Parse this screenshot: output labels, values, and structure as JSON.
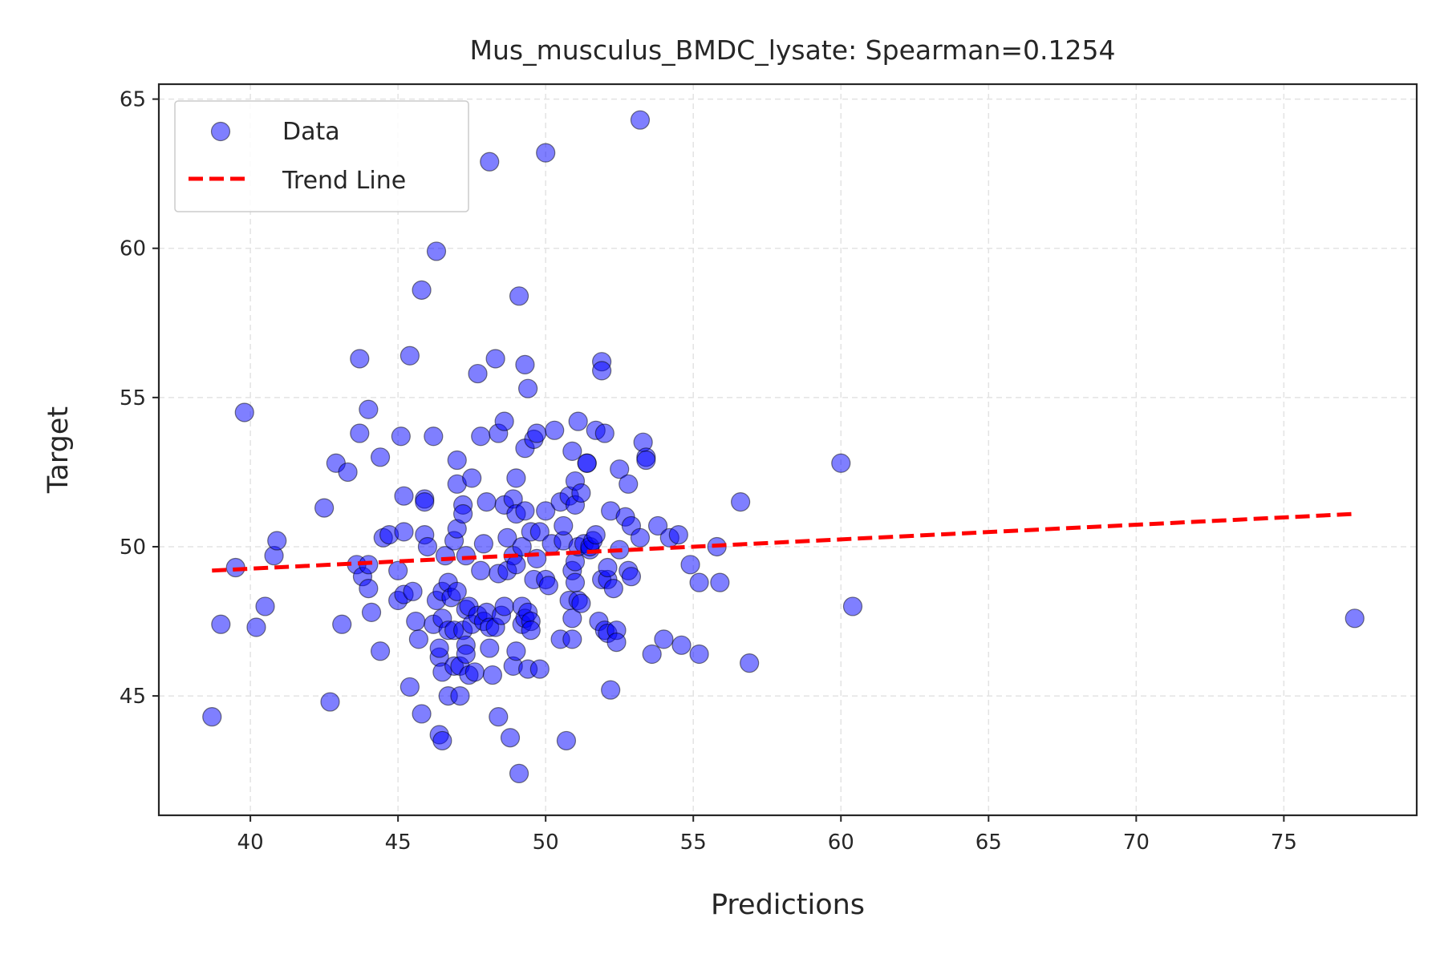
{
  "colors": {
    "points": "#0000ff",
    "trend": "#ff0000",
    "grid": "#e3e3e3",
    "frame": "#262626"
  },
  "legend": {
    "data_label": "Data",
    "trend_label": "Trend Line",
    "placement": "top-left"
  },
  "chart_data": {
    "type": "scatter",
    "title": "Mus_musculus_BMDC_lysate: Spearman=0.1254",
    "xlabel": "Predictions",
    "ylabel": "Target",
    "xlim": [
      36.9,
      79.5
    ],
    "ylim": [
      41.0,
      65.5
    ],
    "xticks": [
      40,
      45,
      50,
      55,
      60,
      65,
      70,
      75
    ],
    "yticks": [
      45,
      50,
      55,
      60,
      65
    ],
    "grid": true,
    "series": [
      {
        "name": "Data",
        "points": [
          [
            38.7,
            44.3
          ],
          [
            39.0,
            47.4
          ],
          [
            39.5,
            49.3
          ],
          [
            39.8,
            54.5
          ],
          [
            40.2,
            47.3
          ],
          [
            40.5,
            48.0
          ],
          [
            40.8,
            49.7
          ],
          [
            40.9,
            50.2
          ],
          [
            42.5,
            51.3
          ],
          [
            42.7,
            44.8
          ],
          [
            42.9,
            52.8
          ],
          [
            43.1,
            47.4
          ],
          [
            43.3,
            52.5
          ],
          [
            43.6,
            49.4
          ],
          [
            43.7,
            53.8
          ],
          [
            43.7,
            56.3
          ],
          [
            43.8,
            49.0
          ],
          [
            44.0,
            48.6
          ],
          [
            44.0,
            49.4
          ],
          [
            44.0,
            54.6
          ],
          [
            44.1,
            47.8
          ],
          [
            44.4,
            53.0
          ],
          [
            44.4,
            46.5
          ],
          [
            44.5,
            50.3
          ],
          [
            44.7,
            50.4
          ],
          [
            45.0,
            48.2
          ],
          [
            45.0,
            49.2
          ],
          [
            45.1,
            53.7
          ],
          [
            45.2,
            48.4
          ],
          [
            45.2,
            51.7
          ],
          [
            45.2,
            50.5
          ],
          [
            45.4,
            56.4
          ],
          [
            45.4,
            45.3
          ],
          [
            45.5,
            48.5
          ],
          [
            45.6,
            47.5
          ],
          [
            45.8,
            58.6
          ],
          [
            45.7,
            46.9
          ],
          [
            45.8,
            44.4
          ],
          [
            45.9,
            50.4
          ],
          [
            45.9,
            51.6
          ],
          [
            45.9,
            51.5
          ],
          [
            46.0,
            50.0
          ],
          [
            46.2,
            53.7
          ],
          [
            46.2,
            47.4
          ],
          [
            46.3,
            59.9
          ],
          [
            46.3,
            48.2
          ],
          [
            46.4,
            46.3
          ],
          [
            46.4,
            46.6
          ],
          [
            46.4,
            43.7
          ],
          [
            46.5,
            47.6
          ],
          [
            46.5,
            48.5
          ],
          [
            46.5,
            45.8
          ],
          [
            46.5,
            43.5
          ],
          [
            46.6,
            49.7
          ],
          [
            46.7,
            48.8
          ],
          [
            46.7,
            47.2
          ],
          [
            46.7,
            45.0
          ],
          [
            46.8,
            48.3
          ],
          [
            46.9,
            46.0
          ],
          [
            46.9,
            50.2
          ],
          [
            46.9,
            47.2
          ],
          [
            47.0,
            52.1
          ],
          [
            47.0,
            52.9
          ],
          [
            47.0,
            50.6
          ],
          [
            47.0,
            48.5
          ],
          [
            47.1,
            45.0
          ],
          [
            47.1,
            46.0
          ],
          [
            47.2,
            51.4
          ],
          [
            47.2,
            51.1
          ],
          [
            47.2,
            47.2
          ],
          [
            47.3,
            49.7
          ],
          [
            47.3,
            47.9
          ],
          [
            47.3,
            46.7
          ],
          [
            47.3,
            46.4
          ],
          [
            47.4,
            45.7
          ],
          [
            47.4,
            48.0
          ],
          [
            47.5,
            52.3
          ],
          [
            47.5,
            47.4
          ],
          [
            47.6,
            45.8
          ],
          [
            47.7,
            55.8
          ],
          [
            47.7,
            47.7
          ],
          [
            47.8,
            53.7
          ],
          [
            47.8,
            49.2
          ],
          [
            47.9,
            50.1
          ],
          [
            47.9,
            47.5
          ],
          [
            48.0,
            47.8
          ],
          [
            48.0,
            51.5
          ],
          [
            48.1,
            62.9
          ],
          [
            48.1,
            46.6
          ],
          [
            48.1,
            47.3
          ],
          [
            48.2,
            45.7
          ],
          [
            48.3,
            56.3
          ],
          [
            48.3,
            47.3
          ],
          [
            48.4,
            53.8
          ],
          [
            48.4,
            49.1
          ],
          [
            48.4,
            44.3
          ],
          [
            48.5,
            47.7
          ],
          [
            48.6,
            51.4
          ],
          [
            48.6,
            48.0
          ],
          [
            48.6,
            54.2
          ],
          [
            48.7,
            50.3
          ],
          [
            48.7,
            49.2
          ],
          [
            48.8,
            43.6
          ],
          [
            48.9,
            51.6
          ],
          [
            48.9,
            49.7
          ],
          [
            48.9,
            46.0
          ],
          [
            49.0,
            52.3
          ],
          [
            49.0,
            49.4
          ],
          [
            49.0,
            51.1
          ],
          [
            49.0,
            46.5
          ],
          [
            49.1,
            42.4
          ],
          [
            49.1,
            58.4
          ],
          [
            49.2,
            50.0
          ],
          [
            49.2,
            48.0
          ],
          [
            49.2,
            47.4
          ],
          [
            49.3,
            47.6
          ],
          [
            49.3,
            56.1
          ],
          [
            49.3,
            53.3
          ],
          [
            49.3,
            51.2
          ],
          [
            49.4,
            55.3
          ],
          [
            49.4,
            47.8
          ],
          [
            49.4,
            45.9
          ],
          [
            49.5,
            47.5
          ],
          [
            49.5,
            47.2
          ],
          [
            49.5,
            50.5
          ],
          [
            49.6,
            53.6
          ],
          [
            49.6,
            48.9
          ],
          [
            49.7,
            53.8
          ],
          [
            49.7,
            49.6
          ],
          [
            49.8,
            50.5
          ],
          [
            49.8,
            45.9
          ],
          [
            50.0,
            51.2
          ],
          [
            50.0,
            63.2
          ],
          [
            50.0,
            48.9
          ],
          [
            50.1,
            48.7
          ],
          [
            50.2,
            50.1
          ],
          [
            50.3,
            53.9
          ],
          [
            50.5,
            46.9
          ],
          [
            50.5,
            51.5
          ],
          [
            50.6,
            50.2
          ],
          [
            50.6,
            50.7
          ],
          [
            50.7,
            43.5
          ],
          [
            50.8,
            51.7
          ],
          [
            50.8,
            48.2
          ],
          [
            50.9,
            49.2
          ],
          [
            50.9,
            46.9
          ],
          [
            50.9,
            47.6
          ],
          [
            50.9,
            53.2
          ],
          [
            51.0,
            49.5
          ],
          [
            51.0,
            48.8
          ],
          [
            51.0,
            52.2
          ],
          [
            51.0,
            51.4
          ],
          [
            51.1,
            54.2
          ],
          [
            51.1,
            48.2
          ],
          [
            51.1,
            50.0
          ],
          [
            51.2,
            51.8
          ],
          [
            51.2,
            48.1
          ],
          [
            51.3,
            50.1
          ],
          [
            51.4,
            52.8
          ],
          [
            51.4,
            52.8
          ],
          [
            51.5,
            49.9
          ],
          [
            51.5,
            50.0
          ],
          [
            51.6,
            50.2
          ],
          [
            51.7,
            53.9
          ],
          [
            51.7,
            50.4
          ],
          [
            51.8,
            47.5
          ],
          [
            51.9,
            56.2
          ],
          [
            51.9,
            55.9
          ],
          [
            51.9,
            48.9
          ],
          [
            52.0,
            47.2
          ],
          [
            52.0,
            53.8
          ],
          [
            52.1,
            48.9
          ],
          [
            52.1,
            49.3
          ],
          [
            52.1,
            47.1
          ],
          [
            52.2,
            45.2
          ],
          [
            52.2,
            51.2
          ],
          [
            52.3,
            48.6
          ],
          [
            52.4,
            47.2
          ],
          [
            52.4,
            46.8
          ],
          [
            52.5,
            52.6
          ],
          [
            52.5,
            49.9
          ],
          [
            52.7,
            51.0
          ],
          [
            52.8,
            52.1
          ],
          [
            52.8,
            49.2
          ],
          [
            52.9,
            49.0
          ],
          [
            52.9,
            50.7
          ],
          [
            53.2,
            64.3
          ],
          [
            53.2,
            50.3
          ],
          [
            53.3,
            53.5
          ],
          [
            53.4,
            53.0
          ],
          [
            53.4,
            52.9
          ],
          [
            53.6,
            46.4
          ],
          [
            53.8,
            50.7
          ],
          [
            54.0,
            46.9
          ],
          [
            54.2,
            50.3
          ],
          [
            54.5,
            50.4
          ],
          [
            54.6,
            46.7
          ],
          [
            54.9,
            49.4
          ],
          [
            55.2,
            48.8
          ],
          [
            55.2,
            46.4
          ],
          [
            55.8,
            50.0
          ],
          [
            55.9,
            48.8
          ],
          [
            56.6,
            51.5
          ],
          [
            56.9,
            46.1
          ],
          [
            60.0,
            52.8
          ],
          [
            60.4,
            48.0
          ],
          [
            77.4,
            47.6
          ]
        ]
      },
      {
        "name": "Trend Line",
        "x": [
          38.7,
          77.4
        ],
        "y": [
          49.2,
          51.1
        ]
      }
    ]
  }
}
